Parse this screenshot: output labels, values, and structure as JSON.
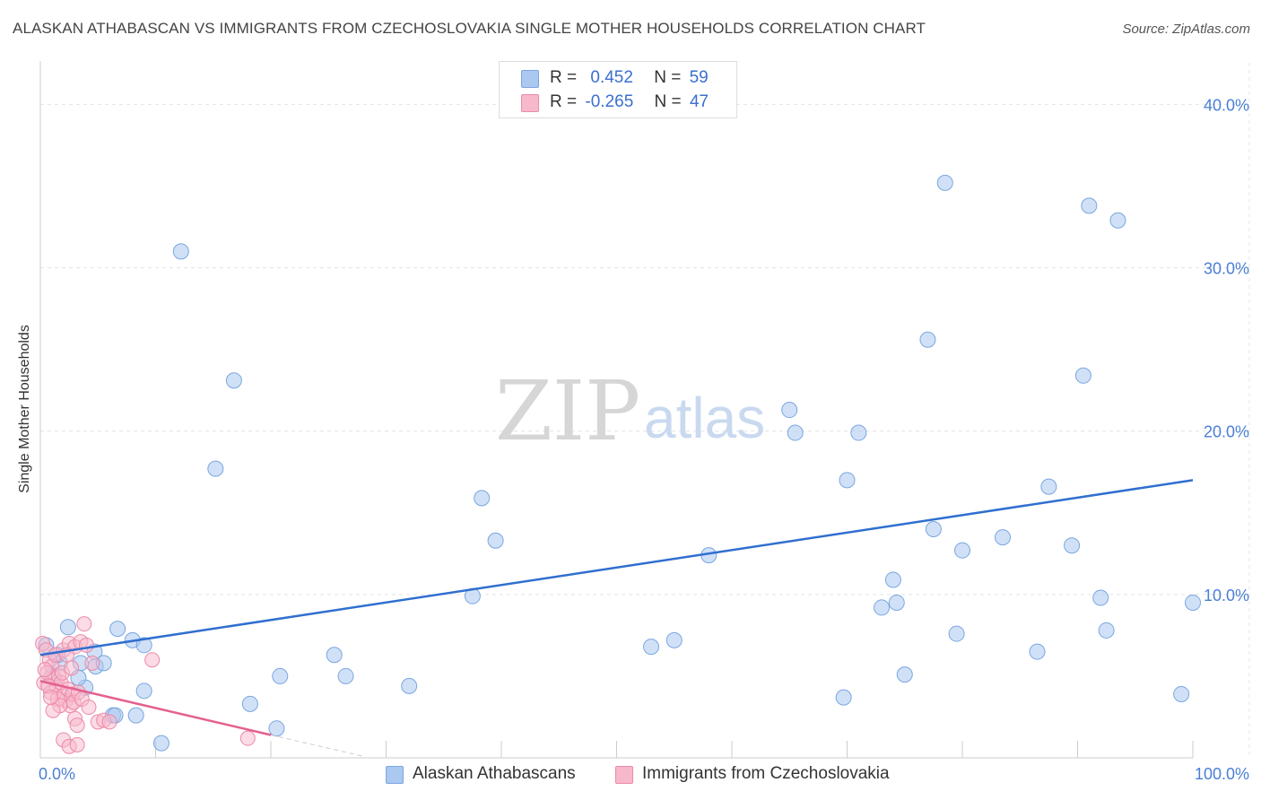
{
  "title": "ALASKAN ATHABASCAN VS IMMIGRANTS FROM CZECHOSLOVAKIA SINGLE MOTHER HOUSEHOLDS CORRELATION CHART",
  "source": "Source: ZipAtlas.com",
  "watermark": {
    "zip": "ZIP",
    "atlas": "atlas"
  },
  "legend": {
    "series1": {
      "r_label": "R =",
      "r_value": "0.452",
      "n_label": "N =",
      "n_value": "59"
    },
    "series2": {
      "r_label": "R =",
      "r_value": "-0.265",
      "n_label": "N =",
      "n_value": "47"
    }
  },
  "bottom_legend": {
    "series1": "Alaskan Athabascans",
    "series2": "Immigrants from Czechoslovakia"
  },
  "colors": {
    "blue_fill": "#aac8f0",
    "blue_stroke": "#7aa6e0",
    "blue_line": "#2f6fd0",
    "pink_fill": "#f7b8cb",
    "pink_stroke": "#ec8aa8",
    "pink_line": "#e5608e",
    "grid": "#e4e4e4",
    "axis_label": "#4a7fd4"
  },
  "chart_data": {
    "type": "scatter",
    "title": "ALASKAN ATHABASCAN VS IMMIGRANTS FROM CZECHOSLOVAKIA SINGLE MOTHER HOUSEHOLDS CORRELATION CHART",
    "xlabel": "",
    "ylabel": "Single Mother Households",
    "xlim": [
      0,
      100
    ],
    "ylim": [
      0,
      42
    ],
    "x_tick_labels": [
      "0.0%",
      "100.0%"
    ],
    "y_ticks": [
      10,
      20,
      30,
      40
    ],
    "y_tick_labels": [
      "10.0%",
      "20.0%",
      "30.0%",
      "40.0%"
    ],
    "grid": true,
    "series": [
      {
        "name": "Alaskan Athabascans",
        "color": "#aac8f0",
        "R": 0.452,
        "N": 59,
        "trend": {
          "x": [
            0,
            100
          ],
          "y": [
            6.3,
            17.0
          ]
        },
        "points": [
          [
            12.2,
            31.0
          ],
          [
            16.8,
            23.1
          ],
          [
            15.2,
            17.7
          ],
          [
            38.3,
            15.9
          ],
          [
            39.5,
            13.3
          ],
          [
            37.5,
            9.9
          ],
          [
            25.5,
            6.3
          ],
          [
            26.5,
            5.0
          ],
          [
            32.0,
            4.4
          ],
          [
            20.8,
            5.0
          ],
          [
            18.2,
            3.3
          ],
          [
            20.5,
            1.8
          ],
          [
            10.5,
            0.9
          ],
          [
            8.3,
            2.6
          ],
          [
            9.0,
            4.1
          ],
          [
            6.3,
            2.6
          ],
          [
            6.5,
            2.6
          ],
          [
            6.7,
            7.9
          ],
          [
            8.0,
            7.2
          ],
          [
            9.0,
            6.9
          ],
          [
            2.4,
            8.0
          ],
          [
            3.5,
            5.8
          ],
          [
            4.8,
            5.6
          ],
          [
            5.5,
            5.8
          ],
          [
            4.7,
            6.5
          ],
          [
            3.9,
            4.3
          ],
          [
            3.3,
            4.9
          ],
          [
            1.7,
            5.8
          ],
          [
            1.5,
            6.3
          ],
          [
            0.5,
            6.9
          ],
          [
            1.0,
            5.0
          ],
          [
            53.0,
            6.8
          ],
          [
            55.0,
            7.2
          ],
          [
            58.0,
            12.4
          ],
          [
            65.0,
            21.3
          ],
          [
            65.5,
            19.9
          ],
          [
            70.0,
            17.0
          ],
          [
            71.0,
            19.9
          ],
          [
            69.7,
            3.7
          ],
          [
            73.0,
            9.2
          ],
          [
            74.0,
            10.9
          ],
          [
            74.3,
            9.5
          ],
          [
            75.0,
            5.1
          ],
          [
            77.0,
            25.6
          ],
          [
            77.5,
            14.0
          ],
          [
            78.5,
            35.2
          ],
          [
            79.5,
            7.6
          ],
          [
            80.0,
            12.7
          ],
          [
            83.5,
            13.5
          ],
          [
            86.5,
            6.5
          ],
          [
            87.5,
            16.6
          ],
          [
            89.5,
            13.0
          ],
          [
            90.5,
            23.4
          ],
          [
            91.0,
            33.8
          ],
          [
            92.0,
            9.8
          ],
          [
            92.5,
            7.8
          ],
          [
            93.5,
            32.9
          ],
          [
            99.0,
            3.9
          ],
          [
            100.0,
            9.5
          ]
        ]
      },
      {
        "name": "Immigrants from Czechoslovakia",
        "color": "#f7b8cb",
        "R": -0.265,
        "N": 47,
        "trend": {
          "x": [
            0,
            20
          ],
          "y": [
            4.7,
            1.4
          ]
        },
        "trend_dashed": {
          "x": [
            20,
            28
          ],
          "y": [
            1.4,
            0.1
          ]
        },
        "points": [
          [
            0.2,
            7.0
          ],
          [
            0.5,
            6.6
          ],
          [
            0.8,
            6.0
          ],
          [
            1.0,
            5.6
          ],
          [
            1.2,
            4.9
          ],
          [
            1.4,
            4.3
          ],
          [
            0.3,
            4.6
          ],
          [
            0.6,
            5.2
          ],
          [
            0.9,
            4.0
          ],
          [
            1.3,
            6.3
          ],
          [
            1.6,
            5.0
          ],
          [
            1.8,
            4.6
          ],
          [
            2.0,
            3.8
          ],
          [
            2.2,
            3.5
          ],
          [
            2.4,
            4.2
          ],
          [
            2.6,
            3.2
          ],
          [
            2.8,
            3.9
          ],
          [
            3.0,
            2.4
          ],
          [
            3.2,
            2.0
          ],
          [
            2.0,
            6.6
          ],
          [
            2.5,
            7.0
          ],
          [
            3.0,
            6.8
          ],
          [
            3.5,
            7.1
          ],
          [
            4.0,
            6.9
          ],
          [
            3.8,
            8.2
          ],
          [
            4.5,
            5.8
          ],
          [
            2.3,
            6.3
          ],
          [
            1.5,
            3.6
          ],
          [
            1.7,
            3.2
          ],
          [
            2.9,
            3.4
          ],
          [
            3.3,
            4.0
          ],
          [
            1.1,
            2.9
          ],
          [
            2.0,
            1.1
          ],
          [
            2.5,
            0.7
          ],
          [
            3.2,
            0.8
          ],
          [
            5.0,
            2.2
          ],
          [
            5.5,
            2.3
          ],
          [
            6.0,
            2.2
          ],
          [
            9.7,
            6.0
          ],
          [
            18.0,
            1.2
          ],
          [
            0.4,
            5.4
          ],
          [
            0.7,
            4.4
          ],
          [
            1.9,
            5.2
          ],
          [
            2.7,
            5.5
          ],
          [
            3.6,
            3.6
          ],
          [
            4.2,
            3.1
          ],
          [
            0.9,
            3.7
          ]
        ]
      }
    ]
  }
}
